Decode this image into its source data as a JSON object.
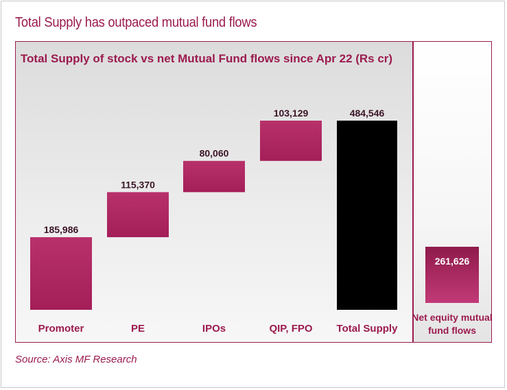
{
  "headline": "Total Supply has outpaced mutual fund flows",
  "source": "Source: Axis MF Research",
  "colors": {
    "accent": "#9b1b4e",
    "bar": "#b02563",
    "total_bar": "#000000"
  },
  "chart_data": {
    "type": "bar",
    "subtitle": "Total Supply of stock vs net Mutual Fund flows since Apr 22 (Rs cr)",
    "categories": [
      "Promoter",
      "PE",
      "IPOs",
      "QIP, FPO",
      "Total Supply",
      "Net equity mutual fund flows"
    ],
    "values": [
      185986,
      115370,
      80060,
      103129,
      484546,
      261626
    ],
    "value_labels": [
      "185,986",
      "115,370",
      "80,060",
      "103,129",
      "484,546",
      "261,626"
    ],
    "waterfall": true,
    "ylim": [
      0,
      484546
    ],
    "grid": false
  }
}
